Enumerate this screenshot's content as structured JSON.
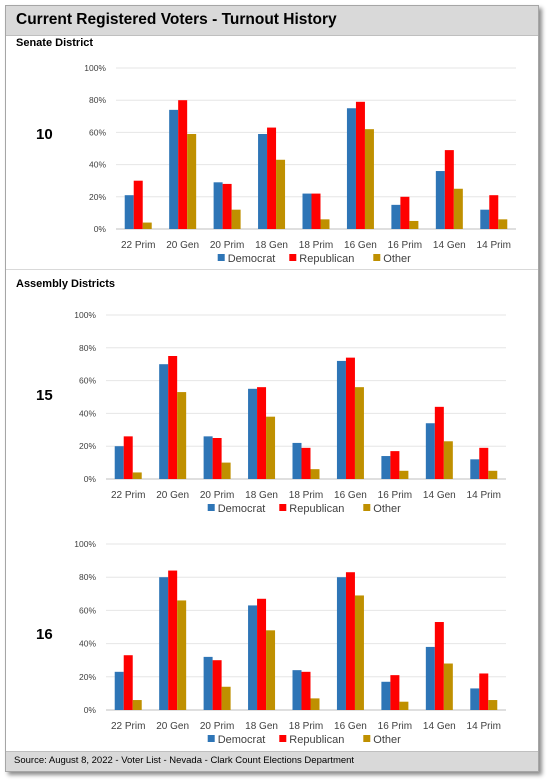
{
  "header": {
    "title": "Current Registered Voters - Turnout History"
  },
  "sections": {
    "senate": "Senate District",
    "assembly": "Assembly Districts"
  },
  "footer": {
    "source": "Source: August 8, 2022 - Voter List - Nevada - Clark Count Elections Department"
  },
  "colors": {
    "Democrat": "#2e75b6",
    "Republican": "#ff0000",
    "Other": "#bf9000"
  },
  "chart_data": [
    {
      "type": "bar",
      "district": "10",
      "categories": [
        "22 Prim",
        "20 Gen",
        "20 Prim",
        "18 Gen",
        "18 Prim",
        "16 Gen",
        "16 Prim",
        "14 Gen",
        "14 Prim"
      ],
      "series": [
        {
          "name": "Democrat",
          "values": [
            21,
            74,
            29,
            59,
            22,
            75,
            15,
            36,
            12
          ]
        },
        {
          "name": "Republican",
          "values": [
            30,
            80,
            28,
            63,
            22,
            79,
            20,
            49,
            21
          ]
        },
        {
          "name": "Other",
          "values": [
            4,
            59,
            12,
            43,
            6,
            62,
            5,
            25,
            6
          ]
        }
      ],
      "ylim": [
        0,
        100
      ],
      "yticks": [
        "0%",
        "20%",
        "40%",
        "60%",
        "80%",
        "100%"
      ],
      "legend": "bottom"
    },
    {
      "type": "bar",
      "district": "15",
      "categories": [
        "22 Prim",
        "20 Gen",
        "20 Prim",
        "18 Gen",
        "18 Prim",
        "16 Gen",
        "16 Prim",
        "14 Gen",
        "14 Prim"
      ],
      "series": [
        {
          "name": "Democrat",
          "values": [
            20,
            70,
            26,
            55,
            22,
            72,
            14,
            34,
            12
          ]
        },
        {
          "name": "Republican",
          "values": [
            26,
            75,
            25,
            56,
            19,
            74,
            17,
            44,
            19
          ]
        },
        {
          "name": "Other",
          "values": [
            4,
            53,
            10,
            38,
            6,
            56,
            5,
            23,
            5
          ]
        }
      ],
      "ylim": [
        0,
        100
      ],
      "yticks": [
        "0%",
        "20%",
        "40%",
        "60%",
        "80%",
        "100%"
      ],
      "legend": "bottom"
    },
    {
      "type": "bar",
      "district": "16",
      "categories": [
        "22 Prim",
        "20 Gen",
        "20 Prim",
        "18 Gen",
        "18 Prim",
        "16 Gen",
        "16 Prim",
        "14 Gen",
        "14 Prim"
      ],
      "series": [
        {
          "name": "Democrat",
          "values": [
            23,
            80,
            32,
            63,
            24,
            80,
            17,
            38,
            13
          ]
        },
        {
          "name": "Republican",
          "values": [
            33,
            84,
            30,
            67,
            23,
            83,
            21,
            53,
            22
          ]
        },
        {
          "name": "Other",
          "values": [
            6,
            66,
            14,
            48,
            7,
            69,
            5,
            28,
            6
          ]
        }
      ],
      "ylim": [
        0,
        100
      ],
      "yticks": [
        "0%",
        "20%",
        "40%",
        "60%",
        "80%",
        "100%"
      ],
      "legend": "bottom"
    }
  ]
}
